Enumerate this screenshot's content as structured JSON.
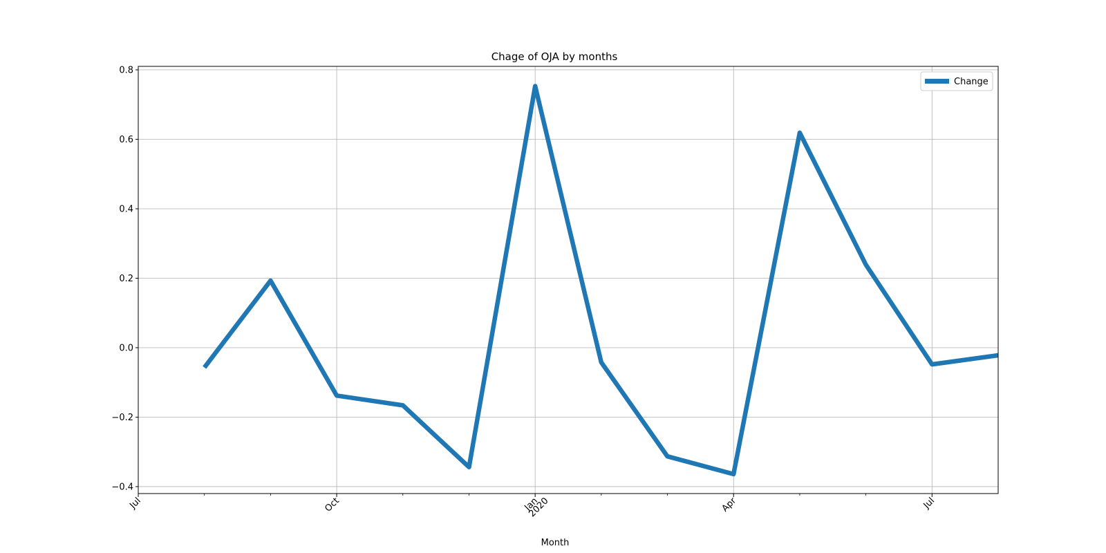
{
  "chart_data": {
    "type": "line",
    "title": "Chage of OJA by months",
    "xlabel": "Month",
    "ylabel": "",
    "x": [
      "2019-08",
      "2019-09",
      "2019-10",
      "2019-11",
      "2019-12",
      "2020-01",
      "2020-02",
      "2020-03",
      "2020-04",
      "2020-05",
      "2020-06",
      "2020-07",
      "2020-08"
    ],
    "series": [
      {
        "name": "Change",
        "values": [
          -0.057,
          0.193,
          -0.138,
          -0.166,
          -0.344,
          0.753,
          -0.042,
          -0.313,
          -0.364,
          0.619,
          0.239,
          -0.048,
          -0.022
        ]
      }
    ],
    "xlim": [
      "2019-07",
      "2020-08"
    ],
    "ylim": [
      -0.42,
      0.81
    ],
    "y_ticks": [
      "−0.4",
      "−0.2",
      "0.0",
      "0.2",
      "0.4",
      "0.6",
      "0.8"
    ],
    "x_tick_labels": [
      {
        "month": "2019-07",
        "label": "Jul",
        "sublabel": ""
      },
      {
        "month": "2019-10",
        "label": "Oct",
        "sublabel": ""
      },
      {
        "month": "2020-01",
        "label": "Jan",
        "sublabel": "2020"
      },
      {
        "month": "2020-04",
        "label": "Apr",
        "sublabel": ""
      },
      {
        "month": "2020-07",
        "label": "Jul",
        "sublabel": ""
      }
    ],
    "x_minor_ticks": [
      "2019-08",
      "2019-09",
      "2019-11",
      "2019-12",
      "2020-02",
      "2020-03",
      "2020-05",
      "2020-06"
    ],
    "grid": true,
    "legend": "top-right",
    "colors": {
      "series": "#1f77b4",
      "grid": "#b0b0b0",
      "axis": "#000000"
    }
  }
}
